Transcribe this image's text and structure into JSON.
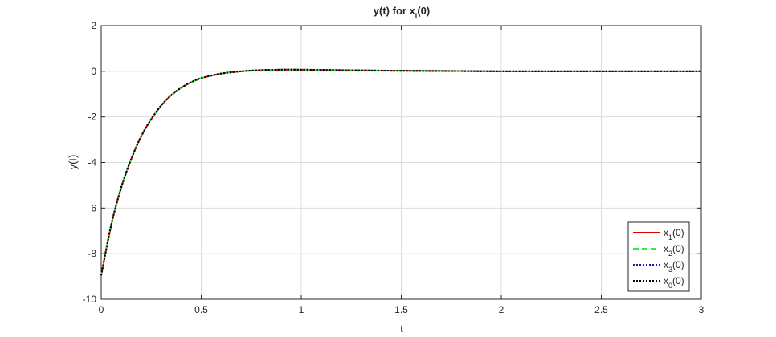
{
  "chart_data": {
    "type": "line",
    "title": "y(t) for x",
    "title_sub": "i",
    "title_tail": "(0)",
    "xlabel": "t",
    "ylabel": "y(t)",
    "xlim": [
      0,
      3
    ],
    "ylim": [
      -10,
      2
    ],
    "xticks": [
      0,
      0.5,
      1,
      1.5,
      2,
      2.5,
      3
    ],
    "xtick_labels": [
      "0",
      "0.5",
      "1",
      "1.5",
      "2",
      "2.5",
      "3"
    ],
    "yticks": [
      -10,
      -8,
      -6,
      -4,
      -2,
      0,
      2
    ],
    "ytick_labels": [
      "-10",
      "-8",
      "-6",
      "-4",
      "-2",
      "0",
      "2"
    ],
    "grid": true,
    "legend_position": "bottom-right",
    "curve_samples": {
      "x": [
        0,
        0.05,
        0.1,
        0.15,
        0.2,
        0.25,
        0.3,
        0.35,
        0.4,
        0.45,
        0.5,
        0.6,
        0.7,
        0.8,
        0.9,
        1.0,
        1.1,
        1.2,
        1.4,
        1.6,
        1.8,
        2.0,
        2.5,
        3.0
      ],
      "y": [
        -8.95,
        -6.75,
        -5.1,
        -3.85,
        -2.85,
        -2.1,
        -1.5,
        -1.05,
        -0.72,
        -0.48,
        -0.3,
        -0.1,
        0.0,
        0.05,
        0.07,
        0.07,
        0.06,
        0.05,
        0.03,
        0.02,
        0.01,
        0.0,
        0.0,
        0.0
      ]
    },
    "series": [
      {
        "base": "x",
        "sub": "1",
        "tail": "(0)",
        "color": "#e00000",
        "dash": "solid"
      },
      {
        "base": "x",
        "sub": "2",
        "tail": "(0)",
        "color": "#33ee33",
        "dash": "dashed"
      },
      {
        "base": "x",
        "sub": "3",
        "tail": "(0)",
        "color": "#1a1aa8",
        "dash": "dotted"
      },
      {
        "base": "x",
        "sub": "0",
        "tail": "(0)",
        "color": "#000000",
        "dash": "dotted"
      }
    ]
  }
}
